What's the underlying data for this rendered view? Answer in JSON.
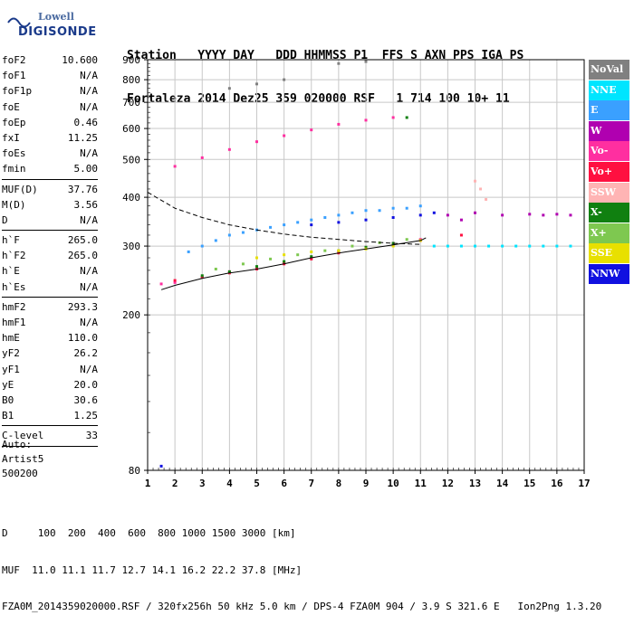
{
  "logo": {
    "line1": "Lowell",
    "line2": "DIGISONDE"
  },
  "header": {
    "line1": "Station   YYYY DAY   DDD HHMMSS P1  FFS S AXN PPS IGA PS",
    "line2": "Fortaleza 2014 Dez25 359 020000 RSF   1 714 100 10+ 11"
  },
  "params": [
    {
      "name": "foF2",
      "value": "10.600"
    },
    {
      "name": "foF1",
      "value": "N/A"
    },
    {
      "name": "foF1p",
      "value": "N/A"
    },
    {
      "name": "foE",
      "value": "N/A"
    },
    {
      "name": "foEp",
      "value": "0.46"
    },
    {
      "name": "fxI",
      "value": "11.25"
    },
    {
      "name": "foEs",
      "value": "N/A"
    },
    {
      "name": "fmin",
      "value": "5.00"
    },
    {
      "sep": true
    },
    {
      "name": "MUF(D)",
      "value": "37.76"
    },
    {
      "name": "M(D)",
      "value": "3.56"
    },
    {
      "name": "D",
      "value": "N/A"
    },
    {
      "sep": true
    },
    {
      "name": "h`F",
      "value": "265.0"
    },
    {
      "name": "h`F2",
      "value": "265.0"
    },
    {
      "name": "h`E",
      "value": "N/A"
    },
    {
      "name": "h`Es",
      "value": "N/A"
    },
    {
      "sep": true
    },
    {
      "name": "hmF2",
      "value": "293.3"
    },
    {
      "name": "hmF1",
      "value": "N/A"
    },
    {
      "name": "hmE",
      "value": "110.0"
    },
    {
      "name": "yF2",
      "value": "26.2"
    },
    {
      "name": "yF1",
      "value": "N/A"
    },
    {
      "name": "yE",
      "value": "20.0"
    },
    {
      "name": "B0",
      "value": "30.6"
    },
    {
      "name": "B1",
      "value": "1.25"
    },
    {
      "sep": true
    },
    {
      "name": "C-level",
      "value": "33"
    },
    {
      "sep": true
    }
  ],
  "auto": {
    "line1": "Auto:",
    "line2": "Artist5",
    "line3": "500200"
  },
  "legend": [
    {
      "label": "NoVal",
      "color": "#808080"
    },
    {
      "label": "NNE",
      "color": "#00e5ff"
    },
    {
      "label": "E",
      "color": "#3aa0ff"
    },
    {
      "label": "W",
      "color": "#b000b0"
    },
    {
      "label": "Vo-",
      "color": "#ff2fa0"
    },
    {
      "label": "Vo+",
      "color": "#ff1040"
    },
    {
      "label": "SSW",
      "color": "#ffb4b4"
    },
    {
      "label": "X-",
      "color": "#108010"
    },
    {
      "label": "X+",
      "color": "#7ec850"
    },
    {
      "label": "SSE",
      "color": "#e8e000"
    },
    {
      "label": "NNW",
      "color": "#1010e0"
    }
  ],
  "footer": {
    "line1": "D     100  200  400  600  800 1000 1500 3000 [km]",
    "line2": "MUF  11.0 11.1 11.7 12.7 14.1 16.2 22.2 37.8 [MHz]",
    "line3": "FZA0M_2014359020000.RSF / 320fx256h 50 kHz 5.0 km / DPS-4 FZA0M 904 / 3.9 S 321.6 E   Ion2Png 1.3.20"
  },
  "chart_data": {
    "type": "scatter",
    "title": "",
    "xlabel": "",
    "ylabel": "",
    "xlim": [
      1,
      17
    ],
    "ylim": [
      80,
      900
    ],
    "yscale": "log",
    "xticks": [
      1,
      2,
      3,
      4,
      5,
      6,
      7,
      8,
      9,
      10,
      11,
      12,
      13,
      14,
      15,
      16,
      17
    ],
    "yticks": [
      80,
      200,
      300,
      400,
      500,
      600,
      700,
      800,
      900
    ],
    "grid": true,
    "series": [
      {
        "name": "E",
        "color": "#3aa0ff",
        "x": [
          2.5,
          3.0,
          3.5,
          4.0,
          4.5,
          5.0,
          5.5,
          6.0,
          6.5,
          7.0,
          7.5,
          8.0,
          8.5,
          9.0,
          9.5,
          10.0,
          10.5,
          11.0
        ],
        "y": [
          290,
          300,
          310,
          320,
          325,
          330,
          335,
          340,
          345,
          350,
          355,
          360,
          365,
          370,
          370,
          375,
          375,
          380
        ]
      },
      {
        "name": "NNE",
        "color": "#00e5ff",
        "x": [
          11.5,
          12.0,
          12.5,
          13.0,
          13.5,
          14.0,
          14.5,
          15.0,
          15.5,
          16.0,
          16.5
        ],
        "y": [
          300,
          300,
          300,
          300,
          300,
          300,
          300,
          300,
          300,
          300,
          300
        ]
      },
      {
        "name": "W",
        "color": "#b000b0",
        "x": [
          12.0,
          12.5,
          13.0,
          14.0,
          15.0,
          15.5,
          16.0,
          16.5
        ],
        "y": [
          360,
          350,
          365,
          360,
          362,
          360,
          362,
          360
        ]
      },
      {
        "name": "Vo-",
        "color": "#ff2fa0",
        "x": [
          1.5,
          2.0,
          3.0,
          4.0,
          5.0,
          6.0,
          7.0,
          8.0,
          9.0,
          10.0,
          11.0,
          2.0,
          3.0,
          4.0,
          5.0,
          6.0,
          7.0,
          8.0,
          9.0,
          10.0
        ],
        "y": [
          240,
          242,
          250,
          258,
          265,
          272,
          280,
          290,
          298,
          305,
          312,
          480,
          505,
          530,
          555,
          575,
          595,
          615,
          630,
          640
        ]
      },
      {
        "name": "Vo+",
        "color": "#ff1040",
        "x": [
          2.0,
          3.0,
          4.0,
          5.0,
          6.0,
          7.0,
          8.0,
          9.0,
          10.0,
          11.0,
          12.5
        ],
        "y": [
          245,
          250,
          256,
          262,
          270,
          278,
          288,
          296,
          302,
          310,
          320
        ]
      },
      {
        "name": "SSW",
        "color": "#ffb4b4",
        "x": [
          13.0,
          13.2,
          13.4
        ],
        "y": [
          440,
          420,
          395
        ]
      },
      {
        "name": "X-",
        "color": "#108010",
        "x": [
          3.0,
          4.0,
          5.0,
          6.0,
          7.0,
          8.0,
          9.0,
          10.0,
          10.5
        ],
        "y": [
          252,
          258,
          266,
          274,
          282,
          292,
          298,
          305,
          640
        ]
      },
      {
        "name": "X+",
        "color": "#7ec850",
        "x": [
          3.5,
          4.5,
          5.5,
          6.5,
          7.5,
          8.5,
          9.5,
          10.5
        ],
        "y": [
          262,
          270,
          278,
          285,
          292,
          300,
          306,
          312
        ]
      },
      {
        "name": "SSE",
        "color": "#e8e000",
        "x": [
          5.0,
          6.0,
          7.0,
          8.0,
          9.0,
          10.0,
          11.0
        ],
        "y": [
          280,
          285,
          290,
          292,
          295,
          300,
          310
        ]
      },
      {
        "name": "NNW",
        "color": "#1010e0",
        "x": [
          7.0,
          8.0,
          9.0,
          10.0,
          11.0,
          11.5,
          1.5
        ],
        "y": [
          340,
          345,
          350,
          355,
          360,
          365,
          82
        ]
      },
      {
        "name": "NoVal",
        "color": "#808080",
        "x": [
          4.0,
          5.0,
          6.0,
          8.0,
          9.0
        ],
        "y": [
          760,
          780,
          800,
          880,
          890
        ]
      }
    ],
    "trace": {
      "x": [
        1.5,
        2.0,
        3.0,
        4.0,
        5.0,
        6.0,
        7.0,
        8.0,
        9.0,
        10.0,
        11.0,
        11.2
      ],
      "y": [
        232,
        238,
        248,
        256,
        262,
        270,
        280,
        288,
        295,
        302,
        310,
        315
      ]
    },
    "dashed": {
      "x": [
        1.0,
        1.5,
        2.0,
        3.0,
        4.0,
        5.0,
        6.0,
        7.0,
        8.0,
        9.0,
        10.0,
        11.0
      ],
      "y": [
        412,
        393,
        375,
        355,
        340,
        330,
        322,
        316,
        312,
        308,
        305,
        303
      ]
    }
  }
}
